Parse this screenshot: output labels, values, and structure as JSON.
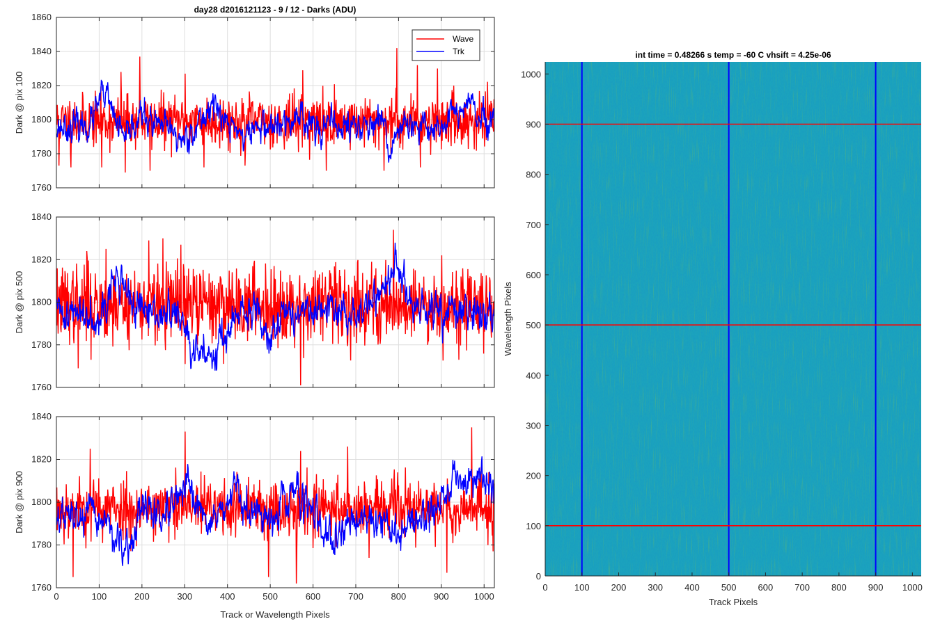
{
  "figure": {
    "title": "day28 d2016121123 - 9 / 12 - Darks (ADU)",
    "x_label": "Track or Wavelength Pixels"
  },
  "chart_data": [
    {
      "type": "line",
      "ylabel": "Dark @ pix 100",
      "xlim": [
        0,
        1024
      ],
      "ylim": [
        1760,
        1860
      ],
      "xticks": [
        0,
        100,
        200,
        300,
        400,
        500,
        600,
        700,
        800,
        900,
        1000
      ],
      "yticks": [
        1760,
        1780,
        1800,
        1820,
        1840,
        1860
      ],
      "grid": true,
      "legend": {
        "placement": "top-right",
        "entries": [
          "Wave",
          "Trk"
        ]
      },
      "series": [
        {
          "name": "Wave",
          "color": "#ff0000",
          "mean": 1799,
          "sd": 7.5,
          "seed": 11,
          "peaks": [
            [
              150,
              1828
            ],
            [
              194,
              1837
            ],
            [
              300,
              1827
            ],
            [
              575,
              1829
            ],
            [
              795,
              1842
            ],
            [
              843,
              1832
            ],
            [
              890,
              1830
            ]
          ],
          "troughs": [
            [
              5,
              1773
            ],
            [
              33,
              1772
            ],
            [
              105,
              1772
            ],
            [
              160,
              1769
            ],
            [
              218,
              1770
            ],
            [
              344,
              1772
            ],
            [
              440,
              1773
            ],
            [
              630,
              1770
            ],
            [
              765,
              1770
            ],
            [
              850,
              1772
            ]
          ]
        },
        {
          "name": "Trk",
          "color": "#0000ff",
          "mean": 1796,
          "sd": 6.5,
          "seed": 23,
          "bumps": [
            [
              110,
              22,
              18
            ],
            [
              200,
              18,
              6
            ],
            [
              365,
              20,
              14
            ],
            [
              570,
              18,
              8
            ],
            [
              925,
              14,
              10
            ],
            [
              960,
              14,
              14
            ],
            [
              980,
              14,
              6
            ]
          ],
          "dips": [
            [
              160,
              10,
              10
            ],
            [
              290,
              22,
              8
            ],
            [
              440,
              16,
              6
            ],
            [
              780,
              10,
              16
            ],
            [
              840,
              12,
              4
            ]
          ]
        }
      ]
    },
    {
      "type": "line",
      "ylabel": "Dark @ pix 500",
      "xlim": [
        0,
        1024
      ],
      "ylim": [
        1760,
        1840
      ],
      "xticks": [
        0,
        100,
        200,
        300,
        400,
        500,
        600,
        700,
        800,
        900,
        1000
      ],
      "yticks": [
        1760,
        1780,
        1800,
        1820,
        1840
      ],
      "grid": true,
      "series": [
        {
          "name": "Wave",
          "color": "#ff0000",
          "mean": 1799,
          "sd": 9,
          "seed": 37,
          "peaks": [
            [
              70,
              1824
            ],
            [
              115,
              1825
            ],
            [
              215,
              1829
            ],
            [
              248,
              1830
            ],
            [
              290,
              1827
            ],
            [
              787,
              1834
            ],
            [
              900,
              1822
            ]
          ],
          "troughs": [
            [
              50,
              1769
            ],
            [
              80,
              1773
            ],
            [
              300,
              1771
            ],
            [
              570,
              1761
            ],
            [
              940,
              1773
            ]
          ]
        },
        {
          "name": "Trk",
          "color": "#0000ff",
          "mean": 1795,
          "sd": 6.5,
          "seed": 41,
          "bumps": [
            [
              145,
              28,
              16
            ],
            [
              780,
              40,
              16
            ],
            [
              800,
              12,
              10
            ]
          ],
          "dips": [
            [
              355,
              50,
              18
            ],
            [
              320,
              16,
              10
            ],
            [
              500,
              20,
              8
            ]
          ]
        }
      ]
    },
    {
      "type": "line",
      "ylabel": "Dark @ pix 900",
      "xlim": [
        0,
        1024
      ],
      "ylim": [
        1760,
        1840
      ],
      "xticks": [
        0,
        100,
        200,
        300,
        400,
        500,
        600,
        700,
        800,
        900,
        1000
      ],
      "yticks": [
        1760,
        1780,
        1800,
        1820,
        1840
      ],
      "grid": true,
      "series": [
        {
          "name": "Wave",
          "color": "#ff0000",
          "mean": 1797,
          "sd": 7,
          "seed": 53,
          "peaks": [
            [
              78,
              1825
            ],
            [
              300,
              1833
            ],
            [
              570,
              1824
            ],
            [
              680,
              1826
            ],
            [
              970,
              1835
            ]
          ],
          "troughs": [
            [
              38,
              1765
            ],
            [
              495,
              1765
            ],
            [
              560,
              1762
            ],
            [
              730,
              1774
            ],
            [
              912,
              1767
            ]
          ]
        },
        {
          "name": "Trk",
          "color": "#0000ff",
          "mean": 1793,
          "sd": 6,
          "seed": 67,
          "bumps": [
            [
              200,
              20,
              8
            ],
            [
              300,
              25,
              12
            ],
            [
              420,
              20,
              12
            ],
            [
              560,
              40,
              12
            ],
            [
              940,
              45,
              18
            ],
            [
              1000,
              30,
              16
            ]
          ],
          "dips": [
            [
              160,
              30,
              18
            ],
            [
              640,
              30,
              14
            ],
            [
              800,
              30,
              8
            ]
          ]
        }
      ]
    },
    {
      "type": "heatmap",
      "title": "int time = 0.48266 s    temp = -60 C    vhsift = 4.25e-06",
      "xlabel": "Track Pixels",
      "ylabel": "Wavelength Pixels",
      "xlim": [
        0,
        1024
      ],
      "ylim": [
        0,
        1024
      ],
      "xticks": [
        0,
        100,
        200,
        300,
        400,
        500,
        600,
        700,
        800,
        900,
        1000
      ],
      "yticks": [
        0,
        100,
        200,
        300,
        400,
        500,
        600,
        700,
        800,
        900,
        1000
      ],
      "colormap": "parula",
      "vertical_markers": {
        "x": [
          100,
          500,
          900
        ],
        "color": "#0000ff"
      },
      "horizontal_markers": {
        "y": [
          100,
          500,
          900
        ],
        "color": "#ff0000"
      }
    }
  ]
}
